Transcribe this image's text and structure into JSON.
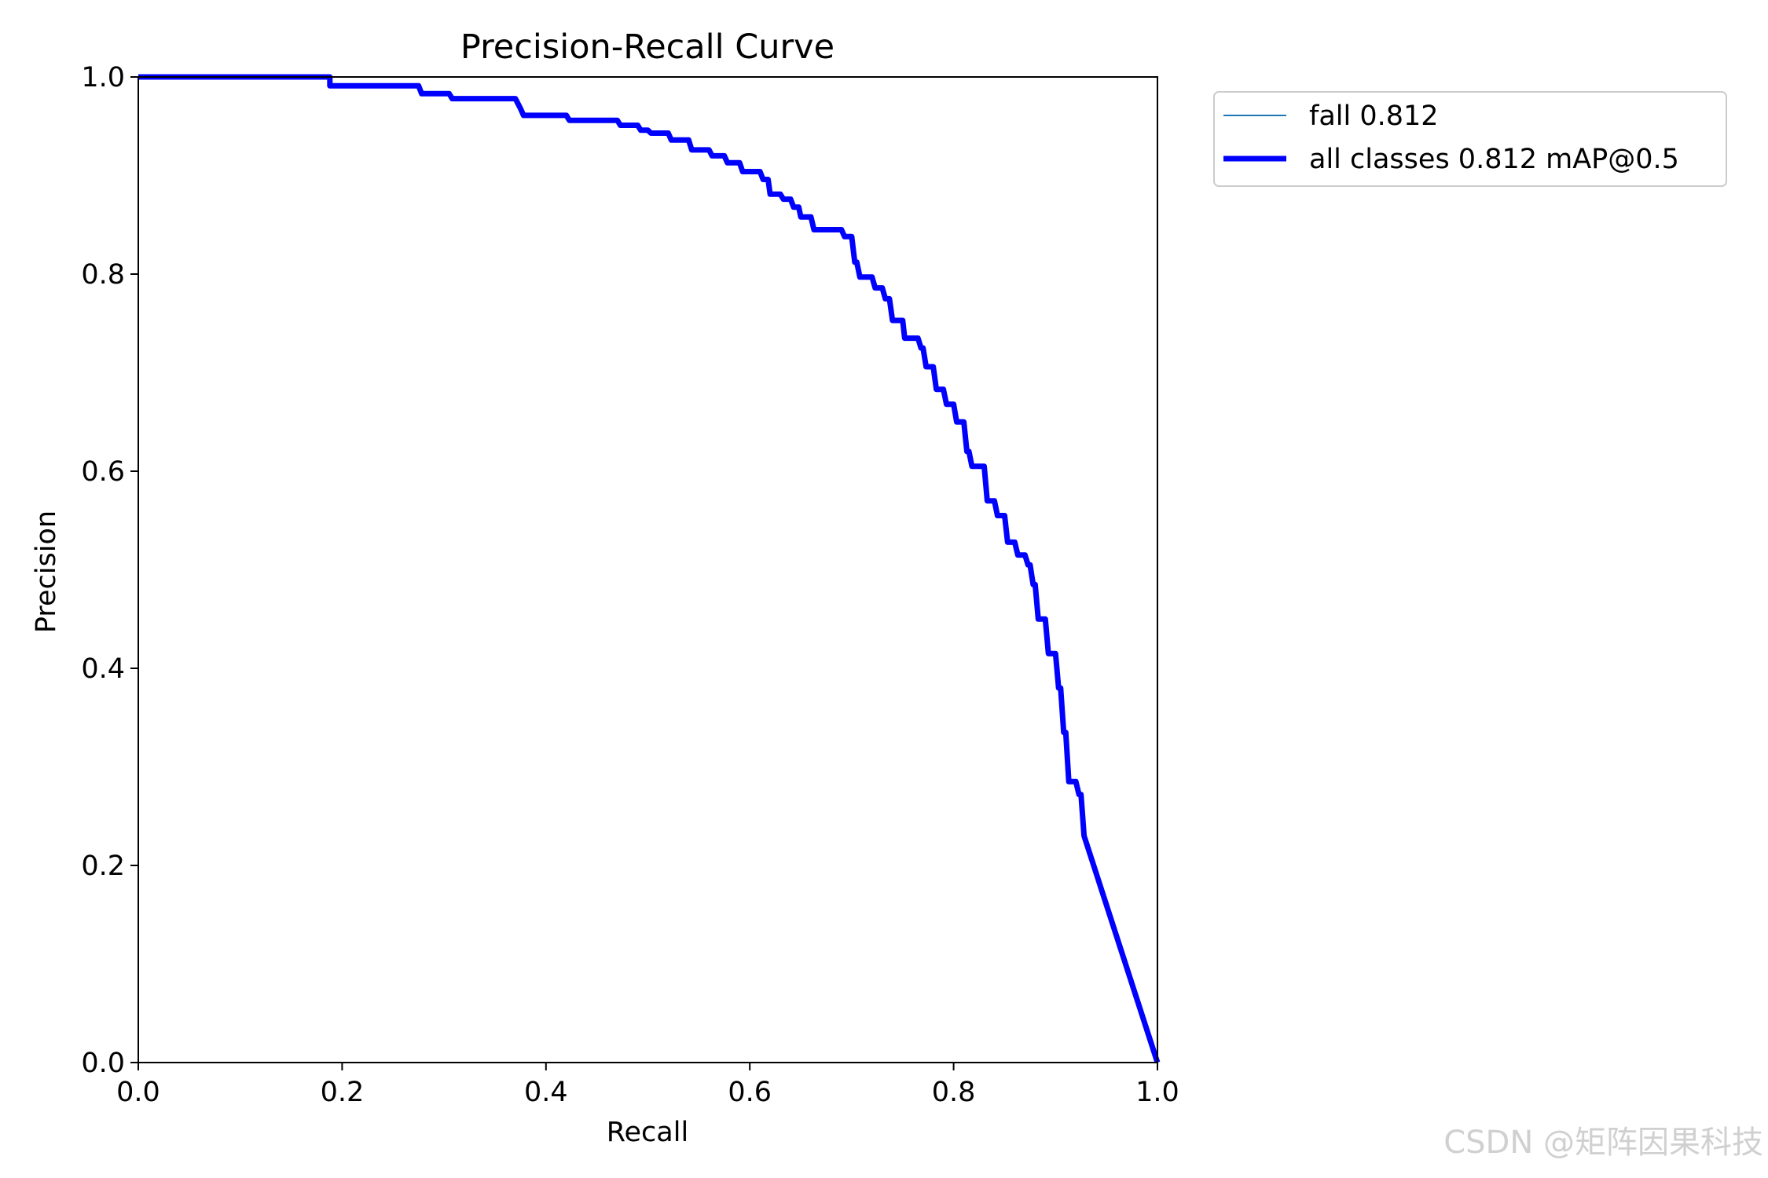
{
  "chart_data": {
    "type": "line",
    "title": "Precision-Recall Curve",
    "xlabel": "Recall",
    "ylabel": "Precision",
    "xlim": [
      0.0,
      1.0
    ],
    "ylim": [
      0.0,
      1.0
    ],
    "xticks": [
      "0.0",
      "0.2",
      "0.4",
      "0.6",
      "0.8",
      "1.0"
    ],
    "yticks": [
      "0.0",
      "0.2",
      "0.4",
      "0.6",
      "0.8",
      "1.0"
    ],
    "grid": false,
    "legend_position": "outside-top-right",
    "series": [
      {
        "name": "fall 0.812",
        "color": "#1f77b4",
        "x": [
          0.0,
          0.188,
          0.188,
          0.275,
          0.278,
          0.305,
          0.308,
          0.37,
          0.375,
          0.378,
          0.42,
          0.423,
          0.47,
          0.473,
          0.49,
          0.493,
          0.5,
          0.503,
          0.52,
          0.523,
          0.54,
          0.543,
          0.56,
          0.563,
          0.575,
          0.578,
          0.59,
          0.593,
          0.61,
          0.613,
          0.618,
          0.62,
          0.63,
          0.633,
          0.64,
          0.643,
          0.648,
          0.65,
          0.66,
          0.663,
          0.69,
          0.693,
          0.7,
          0.703,
          0.705,
          0.708,
          0.72,
          0.723,
          0.73,
          0.733,
          0.737,
          0.74,
          0.75,
          0.752,
          0.765,
          0.768,
          0.77,
          0.773,
          0.78,
          0.783,
          0.79,
          0.793,
          0.8,
          0.803,
          0.81,
          0.813,
          0.815,
          0.818,
          0.83,
          0.833,
          0.84,
          0.843,
          0.85,
          0.853,
          0.86,
          0.863,
          0.87,
          0.873,
          0.875,
          0.878,
          0.88,
          0.883,
          0.89,
          0.893,
          0.9,
          0.903,
          0.905,
          0.908,
          0.91,
          0.913,
          0.92,
          0.923,
          0.925,
          0.928,
          1.0
        ],
        "y": [
          1.0,
          1.0,
          0.991,
          0.991,
          0.983,
          0.983,
          0.978,
          0.978,
          0.968,
          0.961,
          0.961,
          0.956,
          0.956,
          0.951,
          0.951,
          0.946,
          0.946,
          0.943,
          0.943,
          0.936,
          0.936,
          0.926,
          0.926,
          0.92,
          0.92,
          0.913,
          0.913,
          0.904,
          0.904,
          0.896,
          0.896,
          0.881,
          0.881,
          0.876,
          0.876,
          0.868,
          0.868,
          0.858,
          0.858,
          0.845,
          0.845,
          0.838,
          0.838,
          0.812,
          0.812,
          0.797,
          0.797,
          0.786,
          0.786,
          0.775,
          0.775,
          0.753,
          0.753,
          0.735,
          0.735,
          0.725,
          0.725,
          0.706,
          0.706,
          0.683,
          0.683,
          0.668,
          0.668,
          0.65,
          0.65,
          0.62,
          0.62,
          0.605,
          0.605,
          0.57,
          0.57,
          0.555,
          0.555,
          0.528,
          0.528,
          0.515,
          0.515,
          0.505,
          0.505,
          0.485,
          0.485,
          0.45,
          0.45,
          0.415,
          0.415,
          0.38,
          0.38,
          0.335,
          0.335,
          0.285,
          0.285,
          0.272,
          0.272,
          0.23,
          0.0
        ]
      },
      {
        "name": "all classes 0.812 mAP@0.5",
        "color": "#0000ff",
        "x": [
          0.0,
          0.188,
          0.188,
          0.275,
          0.278,
          0.305,
          0.308,
          0.37,
          0.375,
          0.378,
          0.42,
          0.423,
          0.47,
          0.473,
          0.49,
          0.493,
          0.5,
          0.503,
          0.52,
          0.523,
          0.54,
          0.543,
          0.56,
          0.563,
          0.575,
          0.578,
          0.59,
          0.593,
          0.61,
          0.613,
          0.618,
          0.62,
          0.63,
          0.633,
          0.64,
          0.643,
          0.648,
          0.65,
          0.66,
          0.663,
          0.69,
          0.693,
          0.7,
          0.703,
          0.705,
          0.708,
          0.72,
          0.723,
          0.73,
          0.733,
          0.737,
          0.74,
          0.75,
          0.752,
          0.765,
          0.768,
          0.77,
          0.773,
          0.78,
          0.783,
          0.79,
          0.793,
          0.8,
          0.803,
          0.81,
          0.813,
          0.815,
          0.818,
          0.83,
          0.833,
          0.84,
          0.843,
          0.85,
          0.853,
          0.86,
          0.863,
          0.87,
          0.873,
          0.875,
          0.878,
          0.88,
          0.883,
          0.89,
          0.893,
          0.9,
          0.903,
          0.905,
          0.908,
          0.91,
          0.913,
          0.92,
          0.923,
          0.925,
          0.928,
          1.0
        ],
        "y": [
          1.0,
          1.0,
          0.991,
          0.991,
          0.983,
          0.983,
          0.978,
          0.978,
          0.968,
          0.961,
          0.961,
          0.956,
          0.956,
          0.951,
          0.951,
          0.946,
          0.946,
          0.943,
          0.943,
          0.936,
          0.936,
          0.926,
          0.926,
          0.92,
          0.92,
          0.913,
          0.913,
          0.904,
          0.904,
          0.896,
          0.896,
          0.881,
          0.881,
          0.876,
          0.876,
          0.868,
          0.868,
          0.858,
          0.858,
          0.845,
          0.845,
          0.838,
          0.838,
          0.812,
          0.812,
          0.797,
          0.797,
          0.786,
          0.786,
          0.775,
          0.775,
          0.753,
          0.753,
          0.735,
          0.735,
          0.725,
          0.725,
          0.706,
          0.706,
          0.683,
          0.683,
          0.668,
          0.668,
          0.65,
          0.65,
          0.62,
          0.62,
          0.605,
          0.605,
          0.57,
          0.57,
          0.555,
          0.555,
          0.528,
          0.528,
          0.515,
          0.515,
          0.505,
          0.505,
          0.485,
          0.485,
          0.45,
          0.45,
          0.415,
          0.415,
          0.38,
          0.38,
          0.335,
          0.335,
          0.285,
          0.285,
          0.272,
          0.272,
          0.23,
          0.0
        ]
      }
    ]
  },
  "watermark": "CSDN @矩阵因果科技"
}
